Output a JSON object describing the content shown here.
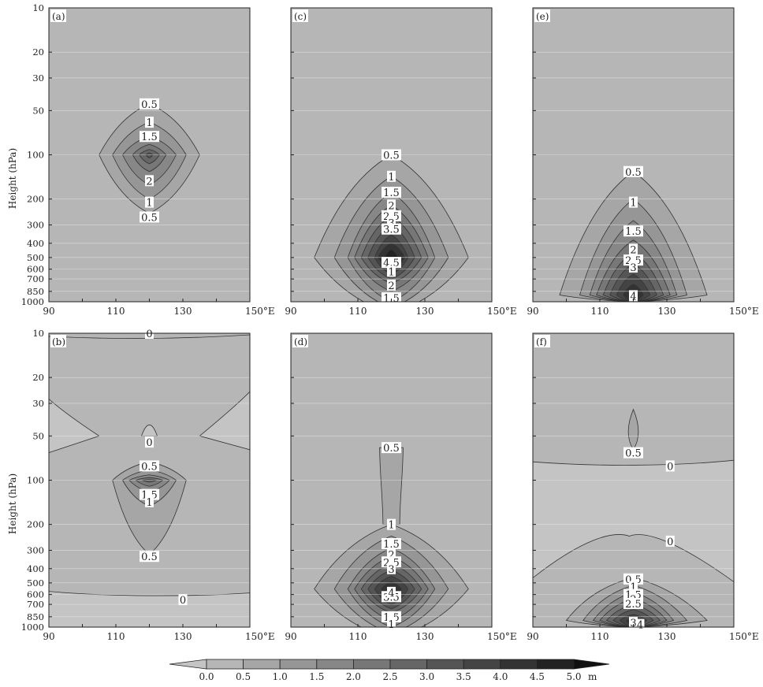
{
  "chart_data": {
    "type": "contour",
    "units": "m",
    "y_axis": {
      "label": "Height (hPa)",
      "scale": "log",
      "range": [
        1000,
        10
      ],
      "ticks": [
        "10",
        "20",
        "30",
        "50",
        "100",
        "200",
        "300",
        "400",
        "500",
        "600",
        "700",
        "850",
        "1000"
      ]
    },
    "x_axis": {
      "range": [
        90,
        150
      ],
      "ticks": [
        "90",
        "110",
        "130",
        "150°E"
      ]
    },
    "colorbar": {
      "levels": [
        "0.0",
        "0.5",
        "1.0",
        "1.5",
        "2.0",
        "2.5",
        "3.0",
        "3.5",
        "4.0",
        "4.5",
        "5.0"
      ],
      "unit": "m",
      "colors": [
        "#c4c4c4",
        "#b6b6b6",
        "#a6a6a6",
        "#969696",
        "#878787",
        "#777777",
        "#666666",
        "#555555",
        "#444444",
        "#333333",
        "#222222",
        "#111111"
      ]
    },
    "panels": [
      {
        "id": "a",
        "label": "(a)",
        "background_level": 0,
        "peak": {
          "lon": 120,
          "p": 100
        },
        "contours": [
          {
            "level": 0.5,
            "top": 45,
            "bottom": 250,
            "west": 105,
            "east": 135
          },
          {
            "level": 1,
            "top": 60,
            "bottom": 200,
            "west": 109,
            "east": 131
          },
          {
            "level": 1.5,
            "top": 75,
            "bottom": 160,
            "west": 112,
            "east": 128
          },
          {
            "level": 2,
            "top": 85,
            "bottom": 130,
            "west": 115,
            "east": 125
          },
          {
            "level": 2.5,
            "top": 92,
            "bottom": 115,
            "west": 117,
            "east": 123
          },
          {
            "level": 3,
            "top": 97,
            "bottom": 105,
            "west": 119,
            "east": 121
          }
        ],
        "labels": [
          {
            "text": "0.5",
            "lon": 120,
            "p": 45
          },
          {
            "text": "1",
            "lon": 120,
            "p": 60
          },
          {
            "text": "1.5",
            "lon": 120,
            "p": 75
          },
          {
            "text": "2",
            "lon": 120,
            "p": 150
          },
          {
            "text": "1",
            "lon": 120,
            "p": 210
          },
          {
            "text": "0.5",
            "lon": 120,
            "p": 265
          }
        ]
      },
      {
        "id": "b",
        "label": "(b)",
        "background_level": 0,
        "peak": {
          "lon": 120,
          "p": 100
        },
        "contours": [
          {
            "level": 0.5,
            "top": 75,
            "bottom": 320,
            "west": 109,
            "east": 131
          },
          {
            "level": 1,
            "top": 85,
            "bottom": 150,
            "west": 112,
            "east": 128
          },
          {
            "level": 1.5,
            "top": 92,
            "bottom": 120,
            "west": 114,
            "east": 126
          },
          {
            "level": 2,
            "top": 96,
            "bottom": 110,
            "west": 116,
            "east": 124
          },
          {
            "level": 2.5,
            "top": 99,
            "bottom": 103,
            "west": 118,
            "east": 122
          }
        ],
        "negative_regions": [
          {
            "where": "lower-band",
            "top": 600,
            "bottom": 1000
          },
          {
            "where": "upper-left-wedge"
          },
          {
            "where": "upper-right-wedge"
          },
          {
            "where": "small-dome-near-50hPa",
            "lon": 120,
            "p": 45
          }
        ],
        "labels": [
          {
            "text": "0",
            "lon": 120,
            "p": 10
          },
          {
            "text": "0",
            "lon": 120,
            "p": 55
          },
          {
            "text": "0.5",
            "lon": 120,
            "p": 80
          },
          {
            "text": "1.5",
            "lon": 120,
            "p": 125
          },
          {
            "text": "1",
            "lon": 120,
            "p": 140
          },
          {
            "text": "0.5",
            "lon": 120,
            "p": 330
          },
          {
            "text": "0",
            "lon": 130,
            "p": 650
          }
        ]
      },
      {
        "id": "c",
        "label": "(c)",
        "background_level": 0,
        "peak": {
          "lon": 120,
          "p": 500
        },
        "contours": [
          {
            "level": 0.5,
            "top": 100,
            "bottom": 1200,
            "west": 97,
            "east": 143
          },
          {
            "level": 1,
            "top": 140,
            "bottom": 1100,
            "west": 103,
            "east": 137
          },
          {
            "level": 1.5,
            "top": 180,
            "bottom": 1000,
            "west": 107,
            "east": 133
          },
          {
            "level": 2,
            "top": 220,
            "bottom": 850,
            "west": 109,
            "east": 131
          },
          {
            "level": 2.5,
            "top": 260,
            "bottom": 750,
            "west": 111,
            "east": 129
          },
          {
            "level": 3,
            "top": 300,
            "bottom": 700,
            "west": 113,
            "east": 127
          },
          {
            "level": 3.5,
            "top": 350,
            "bottom": 650,
            "west": 115,
            "east": 125
          },
          {
            "level": 4,
            "top": 400,
            "bottom": 600,
            "west": 116,
            "east": 124
          },
          {
            "level": 4.5,
            "top": 440,
            "bottom": 570,
            "west": 118,
            "east": 122
          }
        ],
        "labels": [
          {
            "text": "0.5",
            "lon": 120,
            "p": 100
          },
          {
            "text": "1",
            "lon": 120,
            "p": 140
          },
          {
            "text": "1.5",
            "lon": 120,
            "p": 180
          },
          {
            "text": "2",
            "lon": 120,
            "p": 220
          },
          {
            "text": "2.5",
            "lon": 120,
            "p": 260
          },
          {
            "text": "3",
            "lon": 120,
            "p": 290
          },
          {
            "text": "3.5",
            "lon": 120,
            "p": 320
          },
          {
            "text": "4.5",
            "lon": 120,
            "p": 540
          },
          {
            "text": "1",
            "lon": 120,
            "p": 620
          },
          {
            "text": "2",
            "lon": 120,
            "p": 770
          },
          {
            "text": "1.5",
            "lon": 120,
            "p": 940
          }
        ]
      },
      {
        "id": "d",
        "label": "(d)",
        "background_level": 0,
        "peak": {
          "lon": 120,
          "p": 550
        },
        "contours": [
          {
            "level": 0.5,
            "top": 200,
            "bottom": 1200,
            "west": 97,
            "east": 143
          },
          {
            "level": 1,
            "top": 240,
            "bottom": 1100,
            "west": 103,
            "east": 137
          },
          {
            "level": 1.5,
            "top": 290,
            "bottom": 1000,
            "west": 107,
            "east": 133
          },
          {
            "level": 2,
            "top": 330,
            "bottom": 900,
            "west": 109,
            "east": 131
          },
          {
            "level": 2.5,
            "top": 370,
            "bottom": 800,
            "west": 111,
            "east": 129
          },
          {
            "level": 3,
            "top": 410,
            "bottom": 750,
            "west": 113,
            "east": 127
          },
          {
            "level": 3.5,
            "top": 450,
            "bottom": 700,
            "west": 115,
            "east": 125
          },
          {
            "level": 4,
            "top": 490,
            "bottom": 650,
            "west": 117,
            "east": 123
          }
        ],
        "stem": {
          "top": 60,
          "bottom": 200,
          "half_width_lon": 3.5,
          "neck_half_width_lon": 2.5
        },
        "labels": [
          {
            "text": "0.5",
            "lon": 120,
            "p": 60
          },
          {
            "text": "1",
            "lon": 120,
            "p": 200
          },
          {
            "text": "1.5",
            "lon": 120,
            "p": 270
          },
          {
            "text": "2",
            "lon": 120,
            "p": 320
          },
          {
            "text": "2.5",
            "lon": 120,
            "p": 360
          },
          {
            "text": "3",
            "lon": 120,
            "p": 400
          },
          {
            "text": "3.5",
            "lon": 120,
            "p": 620
          },
          {
            "text": "4",
            "lon": 120,
            "p": 580
          },
          {
            "text": "1.5",
            "lon": 120,
            "p": 850
          },
          {
            "text": "1",
            "lon": 120,
            "p": 950
          }
        ]
      },
      {
        "id": "e",
        "label": "(e)",
        "background_level": 0,
        "peak": {
          "lon": 120,
          "p": 900
        },
        "contours": [
          {
            "level": 0.5,
            "top": 130,
            "bottom": 1000,
            "west": 98,
            "east": 142
          },
          {
            "level": 1,
            "top": 200,
            "bottom": 1000,
            "west": 104,
            "east": 136
          },
          {
            "level": 1.5,
            "top": 280,
            "bottom": 1000,
            "west": 107,
            "east": 133
          },
          {
            "level": 2,
            "top": 380,
            "bottom": 1000,
            "west": 109,
            "east": 131
          },
          {
            "level": 2.5,
            "top": 460,
            "bottom": 1000,
            "west": 111,
            "east": 129
          },
          {
            "level": 3,
            "top": 550,
            "bottom": 1000,
            "west": 113,
            "east": 127
          },
          {
            "level": 3.5,
            "top": 650,
            "bottom": 1000,
            "west": 115,
            "east": 125
          },
          {
            "level": 4,
            "top": 760,
            "bottom": 1000,
            "west": 117,
            "east": 123
          }
        ],
        "labels": [
          {
            "text": "0.5",
            "lon": 120,
            "p": 130
          },
          {
            "text": "1",
            "lon": 120,
            "p": 210
          },
          {
            "text": "1.5",
            "lon": 120,
            "p": 330
          },
          {
            "text": "2",
            "lon": 120,
            "p": 440
          },
          {
            "text": "2.5",
            "lon": 120,
            "p": 520
          },
          {
            "text": "3",
            "lon": 120,
            "p": 580
          },
          {
            "text": "4",
            "lon": 120,
            "p": 910
          }
        ]
      },
      {
        "id": "f",
        "label": "(f)",
        "background_level": 0,
        "peak": {
          "lon": 120,
          "p": 900
        },
        "contours": [
          {
            "level": 0.5,
            "top": 460,
            "bottom": 1000,
            "west": 100,
            "east": 142
          },
          {
            "level": 1,
            "top": 520,
            "bottom": 1000,
            "west": 105,
            "east": 136
          },
          {
            "level": 1.5,
            "top": 580,
            "bottom": 1000,
            "west": 108,
            "east": 132
          },
          {
            "level": 2,
            "top": 640,
            "bottom": 1000,
            "west": 110,
            "east": 130
          },
          {
            "level": 2.5,
            "top": 700,
            "bottom": 1000,
            "west": 112,
            "east": 128
          },
          {
            "level": 3,
            "top": 760,
            "bottom": 1000,
            "west": 114,
            "east": 126
          },
          {
            "level": 3.5,
            "top": 820,
            "bottom": 1000,
            "west": 116,
            "east": 124
          },
          {
            "level": 4,
            "top": 880,
            "bottom": 1000,
            "west": 118,
            "east": 122
          }
        ],
        "upper_blob": {
          "level": 0.5,
          "top": 33,
          "bottom": 62,
          "west": 117,
          "east": 123
        },
        "negative_regions": [
          {
            "where": "middle-band",
            "top": 75,
            "bottom": 300
          }
        ],
        "labels": [
          {
            "text": "0.5",
            "lon": 120,
            "p": 65
          },
          {
            "text": "0",
            "lon": 131,
            "p": 80
          },
          {
            "text": "0",
            "lon": 131,
            "p": 260
          },
          {
            "text": "0.5",
            "lon": 120,
            "p": 470
          },
          {
            "text": "1",
            "lon": 120,
            "p": 530
          },
          {
            "text": "1.5",
            "lon": 120,
            "p": 600
          },
          {
            "text": "2",
            "lon": 120,
            "p": 640
          },
          {
            "text": "2.5",
            "lon": 120,
            "p": 690
          },
          {
            "text": "3",
            "lon": 120,
            "p": 930
          },
          {
            "text": "4",
            "lon": 122,
            "p": 960
          }
        ]
      }
    ]
  }
}
